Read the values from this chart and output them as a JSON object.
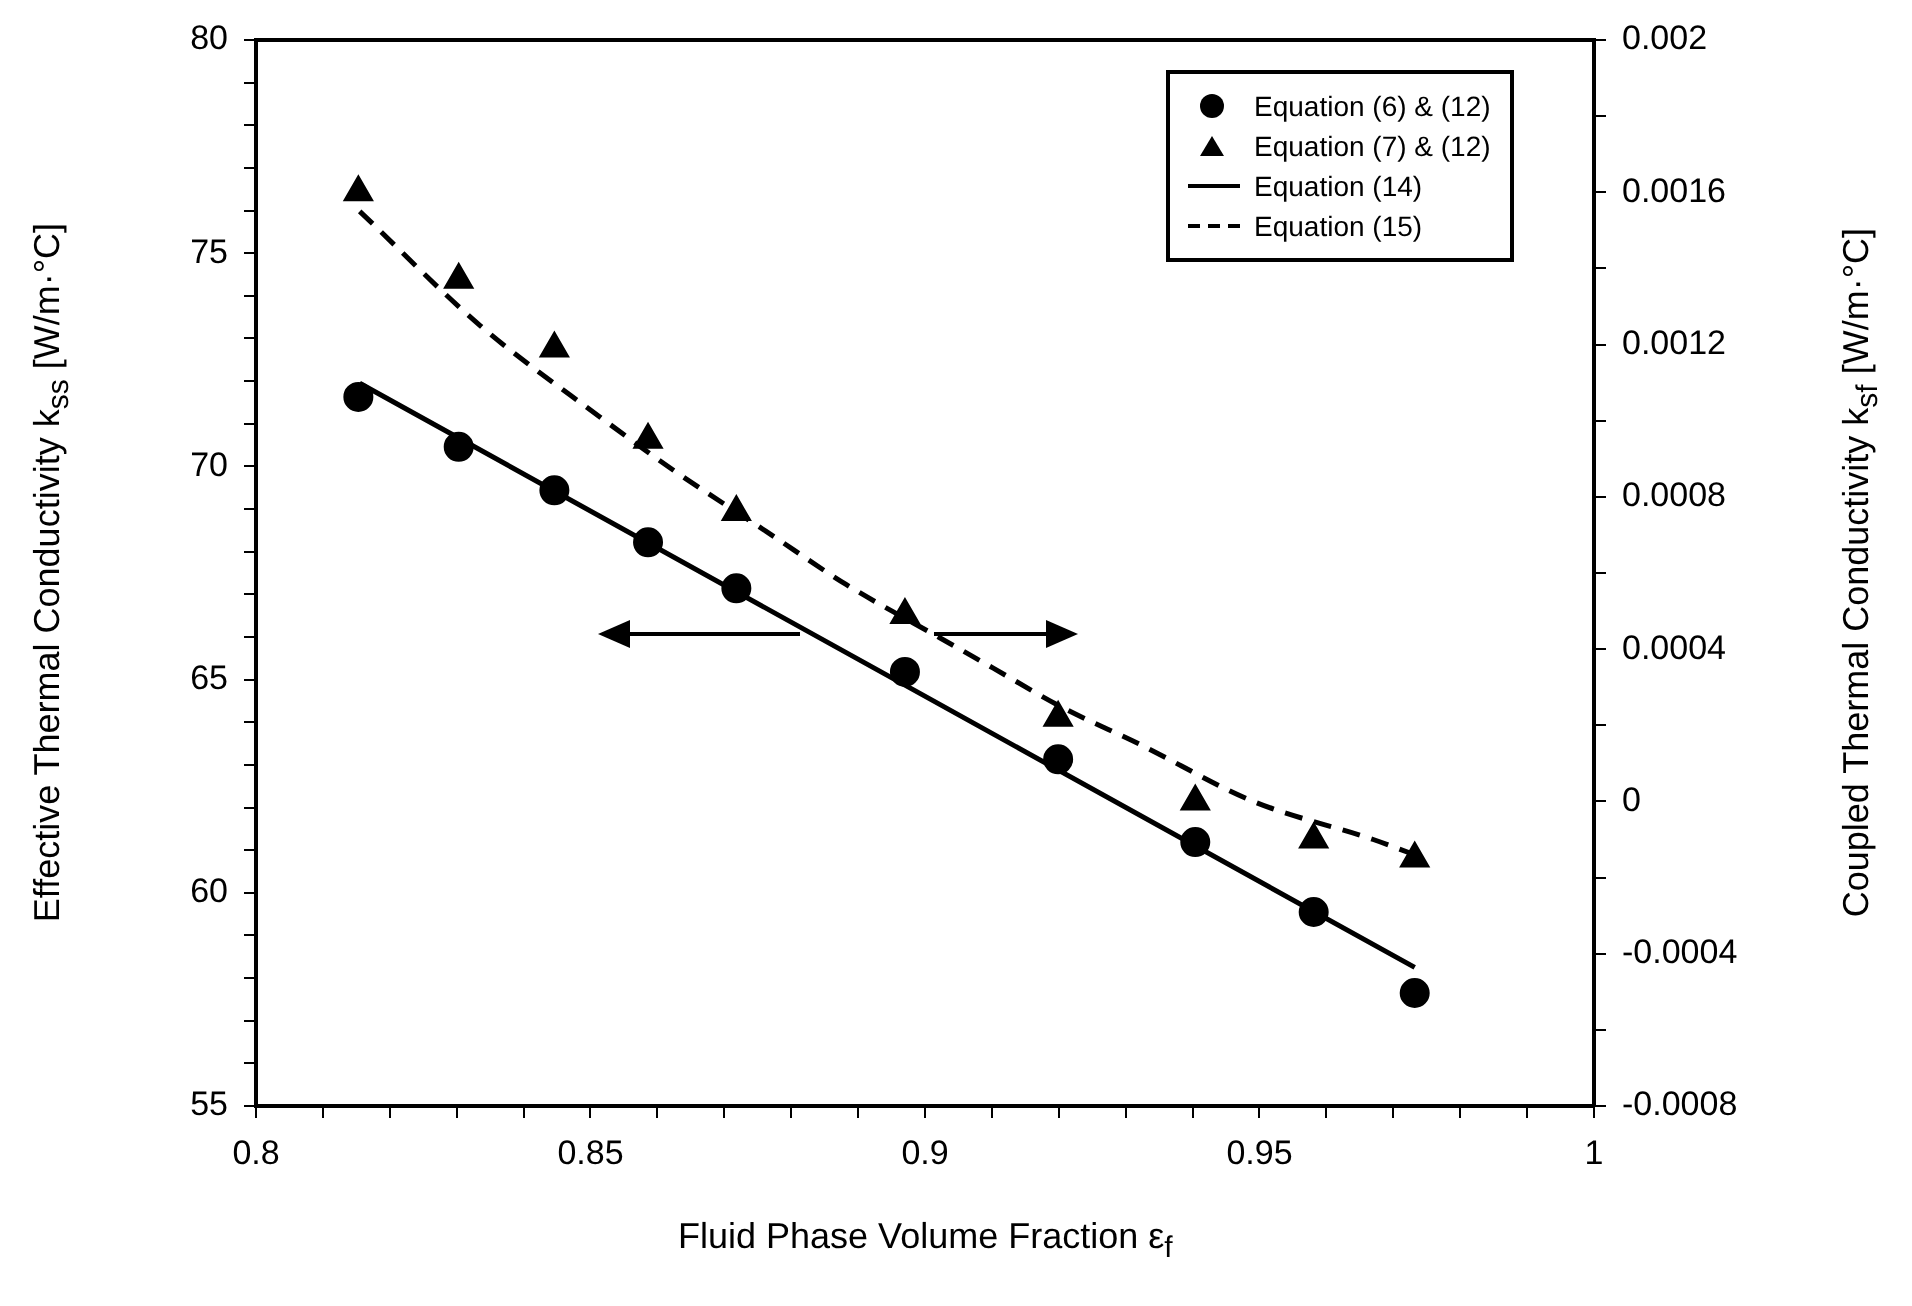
{
  "chart_data": {
    "type": "scatter",
    "xlabel": "Fluid Phase Volume Fraction  ε$_{f}$",
    "ylabel": "Effective Thermal Conductivity  k$_{ss}$  [W/m·°C]",
    "y2label": "Coupled Thermal Conductivity  k$_{sf}$  [W/m·°C]",
    "x": [
      0.8153,
      0.8303,
      0.8446,
      0.8586,
      0.8718,
      0.897,
      0.9199,
      0.9404,
      0.9581,
      0.9732
    ],
    "series": [
      {
        "name": "Equation (6) & (12)",
        "type": "scatter",
        "marker": "circle",
        "color": "#000000",
        "values": [
          71.63,
          70.46,
          69.44,
          68.22,
          67.14,
          65.18,
          63.13,
          61.19,
          59.55,
          57.65
        ]
      },
      {
        "name": "Equation (7) & (12)",
        "type": "scatter",
        "marker": "triangle",
        "axis": "y2",
        "color": "#000000",
        "values": [
          0.0016,
          0.00137,
          0.00119,
          0.00095,
          0.00076,
          0.00049,
          0.00022,
          0,
          -0.0001,
          -0.00015
        ]
      },
      {
        "name": "Equation (14)",
        "type": "line",
        "marker": "none",
        "line_style": "solid",
        "color": "#000000",
        "x": [
          0.8155,
          0.9732
        ],
        "values": [
          71.95,
          58.25
        ]
      },
      {
        "name": "Equation (15)",
        "type": "line",
        "marker": "none",
        "line_style": "dashed",
        "axis": "y2",
        "color": "#000000",
        "x": [
          0.8155,
          0.8335,
          0.8514,
          0.8624,
          0.8762,
          0.8882,
          0.9022,
          0.9102,
          0.9202,
          0.9321,
          0.9491,
          0.967,
          0.9732
        ],
        "values": [
          0.00155,
          0.00125,
          0.00101,
          0.00087,
          0.00071,
          0.00057,
          0.00043,
          0.00035,
          0.00025,
          0.00015,
          0,
          -0.0001,
          -0.00014
        ]
      }
    ],
    "xlim": [
      0.8,
      1
    ],
    "xticks": [
      0.8,
      {
        "value": 0.81,
        "label": null
      },
      {
        "value": 0.82,
        "label": null
      },
      {
        "value": 0.83,
        "label": null
      },
      {
        "value": 0.84,
        "label": null
      },
      0.85,
      {
        "value": 0.86,
        "label": null
      },
      {
        "value": 0.87,
        "label": null
      },
      {
        "value": 0.88,
        "label": null
      },
      {
        "value": 0.89,
        "label": null
      },
      0.9,
      {
        "value": 0.91,
        "label": null
      },
      {
        "value": 0.92,
        "label": null
      },
      {
        "value": 0.93,
        "label": null
      },
      {
        "value": 0.94,
        "label": null
      },
      0.95,
      {
        "value": 0.96,
        "label": null
      },
      {
        "value": 0.97,
        "label": null
      },
      {
        "value": 0.98,
        "label": null
      },
      {
        "value": 0.99,
        "label": null
      },
      1
    ],
    "ylim": [
      55,
      80
    ],
    "yticks": [
      55,
      {
        "value": 56,
        "label": null
      },
      {
        "value": 57,
        "label": null
      },
      {
        "value": 58,
        "label": null
      },
      {
        "value": 59,
        "label": null
      },
      60,
      {
        "value": 61,
        "label": null
      },
      {
        "value": 62,
        "label": null
      },
      {
        "value": 63,
        "label": null
      },
      {
        "value": 64,
        "label": null
      },
      65,
      {
        "value": 66,
        "label": null
      },
      {
        "value": 67,
        "label": null
      },
      {
        "value": 68,
        "label": null
      },
      {
        "value": 69,
        "label": null
      },
      70,
      {
        "value": 71,
        "label": null
      },
      {
        "value": 72,
        "label": null
      },
      {
        "value": 73,
        "label": null
      },
      {
        "value": 74,
        "label": null
      },
      75,
      {
        "value": 76,
        "label": null
      },
      {
        "value": 77,
        "label": null
      },
      {
        "value": 78,
        "label": null
      },
      {
        "value": 79,
        "label": null
      },
      80
    ],
    "y2lim": [
      -0.0008,
      0.002
    ],
    "y2ticks": [
      -0.0008,
      {
        "value": -0.0006,
        "label": null
      },
      -0.0004,
      {
        "value": -0.0002,
        "label": null
      },
      0,
      {
        "value": 0.0002,
        "label": null
      },
      0.0004,
      {
        "value": 0.0006,
        "label": null
      },
      0.0008,
      {
        "value": 0.001,
        "label": null
      },
      0.0012,
      {
        "value": 0.0014,
        "label": null
      },
      0.0016,
      {
        "value": 0.0018,
        "label": null
      },
      0.002
    ],
    "grid": false,
    "legend": "top right"
  }
}
